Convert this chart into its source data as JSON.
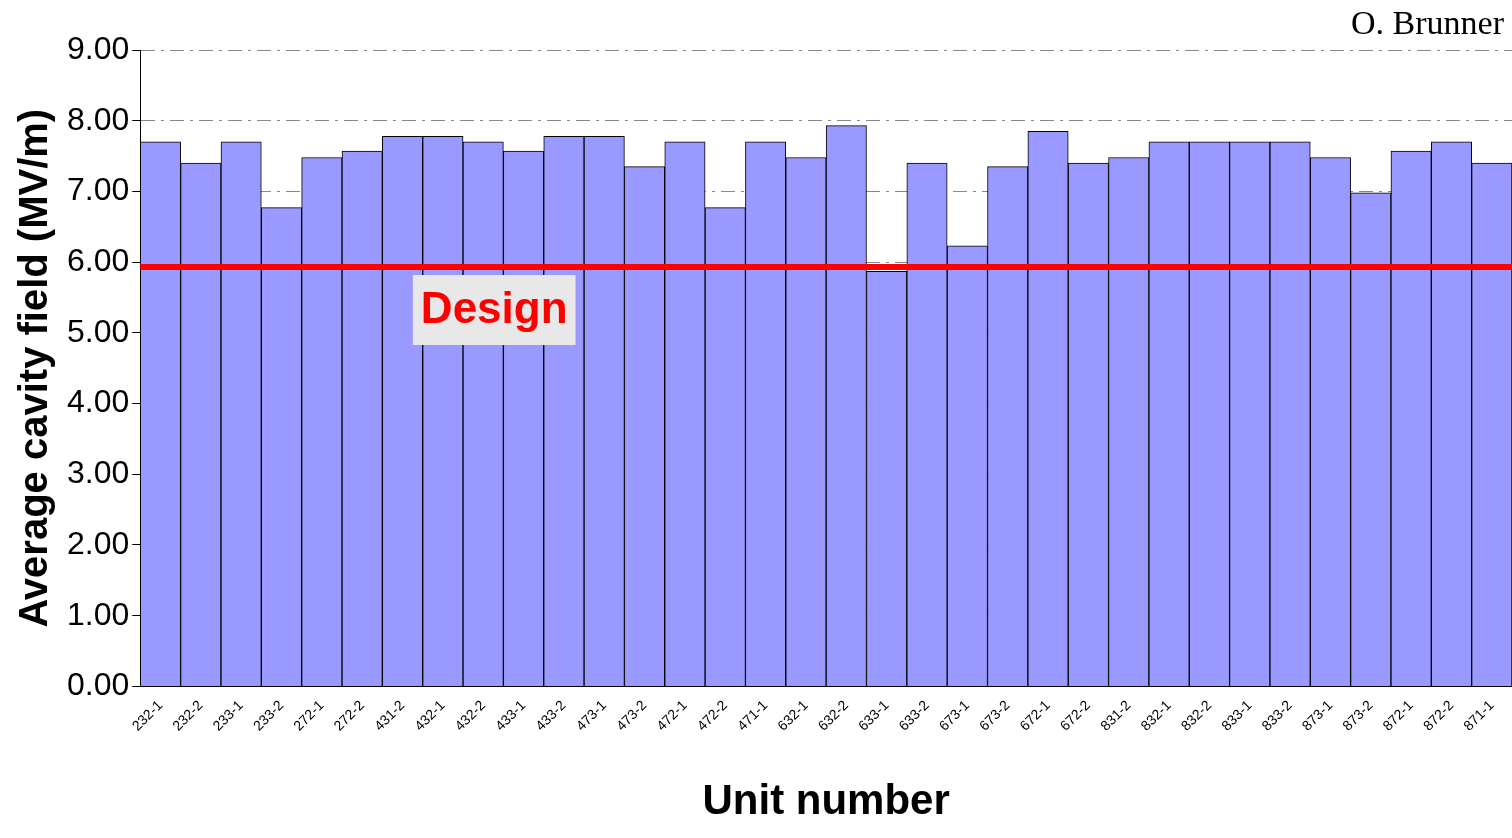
{
  "chart_data": {
    "type": "bar",
    "xlabel": "Unit number",
    "ylabel": "Average cavity field (MV/m)",
    "categories": [
      "232-1",
      "232-2",
      "233-1",
      "233-2",
      "272-1",
      "272-2",
      "431-2",
      "432-1",
      "432-2",
      "433-1",
      "433-2",
      "473-1",
      "473-2",
      "472-1",
      "472-2",
      "471-1",
      "632-1",
      "632-2",
      "633-1",
      "633-2",
      "673-1",
      "673-2",
      "672-1",
      "672-2",
      "831-2",
      "832-1",
      "832-2",
      "833-1",
      "833-2",
      "873-1",
      "873-2",
      "872-1",
      "872-2",
      "871-1"
    ],
    "values": [
      7.7,
      7.4,
      7.7,
      6.77,
      7.48,
      7.57,
      7.78,
      7.78,
      7.7,
      7.57,
      7.78,
      7.78,
      7.35,
      7.7,
      6.77,
      7.7,
      7.48,
      7.93,
      5.87,
      7.4,
      6.23,
      7.35,
      7.85,
      7.4,
      7.48,
      7.7,
      7.7,
      7.7,
      7.7,
      7.48,
      6.98,
      7.57,
      7.7,
      7.4
    ],
    "color": "#9999ff",
    "ylim": [
      0,
      9
    ],
    "yticks": [
      {
        "value": 0,
        "label": "0.00"
      },
      {
        "value": 1,
        "label": "1.00"
      },
      {
        "value": 2,
        "label": "2.00"
      },
      {
        "value": 3,
        "label": "3.00"
      },
      {
        "value": 4,
        "label": "4.00"
      },
      {
        "value": 5,
        "label": "5.00"
      },
      {
        "value": 6,
        "label": "6.00"
      },
      {
        "value": 7,
        "label": "7.00"
      },
      {
        "value": 8,
        "label": "8.00"
      },
      {
        "value": 9,
        "label": "9.00"
      }
    ],
    "grid": "y",
    "ref_lines": [
      {
        "axis": "y",
        "value": 5.93,
        "label": "Design",
        "color": "#ff0000"
      }
    ],
    "annotations": [
      "O. Brunner"
    ]
  }
}
